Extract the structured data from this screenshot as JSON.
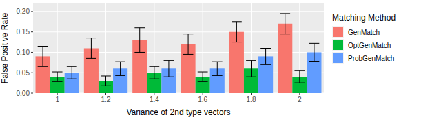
{
  "chart_data": {
    "type": "bar",
    "x_label": "Variance of 2nd type vectors",
    "y_label": "False Positive Rate",
    "legend_title": "Matching Method",
    "legend": "right",
    "grid": true,
    "categories": [
      "1",
      "1.2",
      "1.4",
      "1.6",
      "1.8",
      "2"
    ],
    "ylim": [
      0,
      0.22
    ],
    "yticks": [
      {
        "value": 0,
        "label": "0.00"
      },
      {
        "value": 0.05,
        "label": "0.05"
      },
      {
        "value": 0.1,
        "label": "0.10"
      },
      {
        "value": 0.15,
        "label": "0.15"
      },
      {
        "value": 0.2,
        "label": "0.20"
      }
    ],
    "series": [
      {
        "name": "GenMatch",
        "color": "#F8766D",
        "values": [
          0.09,
          0.11,
          0.13,
          0.12,
          0.15,
          0.17
        ],
        "errors": [
          0.025,
          0.025,
          0.03,
          0.025,
          0.025,
          0.025
        ]
      },
      {
        "name": "OptGenMatch",
        "color": "#00BA38",
        "values": [
          0.04,
          0.03,
          0.05,
          0.04,
          0.06,
          0.04
        ],
        "errors": [
          0.012,
          0.012,
          0.015,
          0.012,
          0.02,
          0.015
        ]
      },
      {
        "name": "ProbGenMatch",
        "color": "#619CFF",
        "values": [
          0.05,
          0.06,
          0.06,
          0.06,
          0.09,
          0.1
        ],
        "errors": [
          0.015,
          0.017,
          0.02,
          0.017,
          0.02,
          0.022
        ]
      }
    ]
  }
}
